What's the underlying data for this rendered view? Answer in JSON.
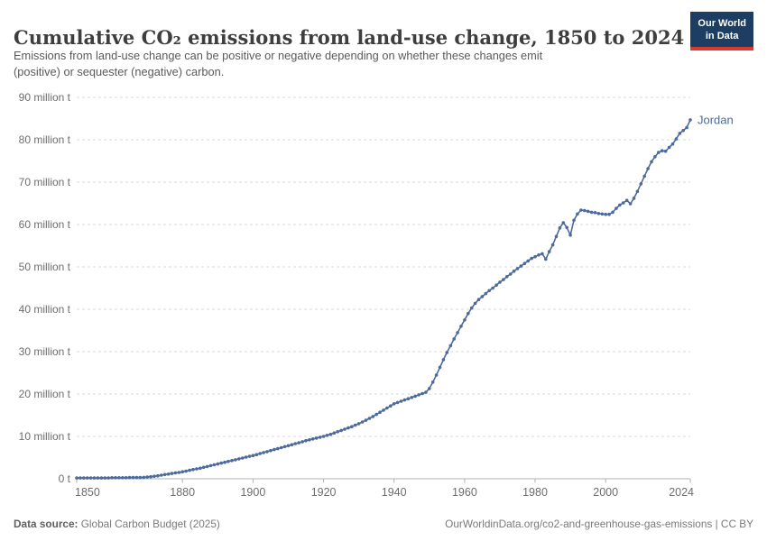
{
  "header": {
    "title": "Cumulative CO₂ emissions from land-use change, 1850 to 2024",
    "subtitle_line1": "Emissions from land-use change can be positive or negative depending on whether these changes emit",
    "subtitle_line2": "(positive) or sequester (negative) carbon.",
    "logo_line1": "Our World",
    "logo_line2": "in Data"
  },
  "footer": {
    "source_label": "Data source:",
    "source_value": " Global Carbon Budget (2025)",
    "credit": "OurWorldinData.org/co2-and-greenhouse-gas-emissions | CC BY"
  },
  "colors": {
    "line": "#4C6A9C",
    "grid": "#dadada",
    "axis": "#b3b3b3",
    "tick_text": "#6d6d6d",
    "logo_bg": "#1d3d63",
    "logo_stripe": "#d93a2b"
  },
  "chart_data": {
    "type": "line",
    "title": "Cumulative CO₂ emissions from land-use change, 1850 to 2024",
    "xlabel": "",
    "ylabel": "",
    "xlim": [
      1850,
      2024
    ],
    "ylim": [
      0,
      90
    ],
    "grid": "horizontal dashed",
    "legend_position": "end-of-line label",
    "x_ticks": [
      1850,
      1880,
      1900,
      1920,
      1940,
      1960,
      1980,
      2000,
      2024
    ],
    "x_tick_labels": [
      "1850",
      "1880",
      "1900",
      "1920",
      "1940",
      "1960",
      "1980",
      "2000",
      "2024"
    ],
    "y_ticks": [
      0,
      10,
      20,
      30,
      40,
      50,
      60,
      70,
      80,
      90
    ],
    "y_tick_labels": [
      "0 t",
      "10 million t",
      "20 million t",
      "30 million t",
      "40 million t",
      "50 million t",
      "60 million t",
      "70 million t",
      "80 million t",
      "90 million t"
    ],
    "end_label": "Jordan",
    "series": [
      {
        "name": "Jordan",
        "color": "#4C6A9C",
        "unit": "million t",
        "x_start": 1850,
        "x_step": 1,
        "values": [
          0.2,
          0.2,
          0.2,
          0.2,
          0.2,
          0.2,
          0.2,
          0.2,
          0.2,
          0.2,
          0.25,
          0.25,
          0.25,
          0.25,
          0.25,
          0.3,
          0.3,
          0.3,
          0.3,
          0.35,
          0.4,
          0.5,
          0.6,
          0.7,
          0.85,
          1.0,
          1.1,
          1.25,
          1.4,
          1.5,
          1.65,
          1.8,
          2.0,
          2.2,
          2.35,
          2.5,
          2.7,
          2.9,
          3.1,
          3.3,
          3.5,
          3.7,
          3.9,
          4.1,
          4.3,
          4.5,
          4.7,
          4.9,
          5.1,
          5.3,
          5.5,
          5.7,
          5.95,
          6.2,
          6.4,
          6.65,
          6.9,
          7.1,
          7.35,
          7.6,
          7.8,
          8.05,
          8.3,
          8.5,
          8.75,
          9.0,
          9.2,
          9.4,
          9.6,
          9.8,
          10.0,
          10.25,
          10.5,
          10.8,
          11.1,
          11.4,
          11.7,
          12.0,
          12.3,
          12.65,
          13.0,
          13.4,
          13.8,
          14.25,
          14.7,
          15.2,
          15.7,
          16.2,
          16.7,
          17.2,
          17.7,
          18.0,
          18.3,
          18.6,
          18.9,
          19.2,
          19.5,
          19.8,
          20.1,
          20.4,
          21.3,
          22.8,
          24.5,
          26.3,
          28.1,
          29.8,
          31.4,
          33.0,
          34.5,
          36.0,
          37.5,
          39.0,
          40.3,
          41.4,
          42.3,
          43.0,
          43.7,
          44.4,
          45.0,
          45.7,
          46.4,
          47.0,
          47.7,
          48.3,
          49.0,
          49.6,
          50.2,
          50.8,
          51.4,
          52.0,
          52.4,
          52.8,
          53.1,
          51.8,
          53.6,
          55.2,
          57.2,
          59.2,
          60.4,
          59.3,
          57.5,
          61.0,
          62.5,
          63.4,
          63.3,
          63.1,
          62.9,
          62.8,
          62.6,
          62.5,
          62.4,
          62.4,
          62.9,
          63.8,
          64.6,
          65.1,
          65.7,
          64.9,
          66.2,
          67.8,
          69.6,
          71.4,
          73.2,
          74.8,
          76.0,
          77.0,
          77.4,
          77.3,
          78.2,
          79.0,
          80.2,
          81.5,
          82.2,
          82.9,
          84.7
        ]
      }
    ]
  }
}
